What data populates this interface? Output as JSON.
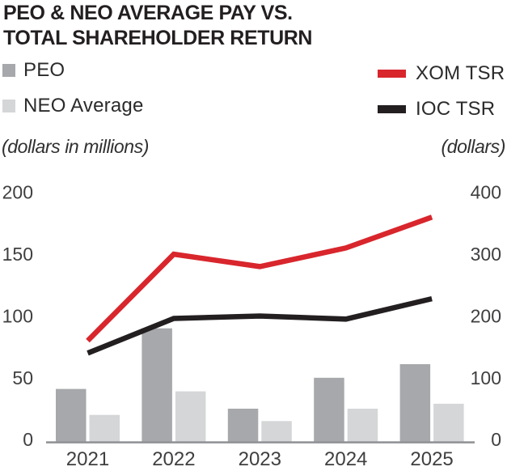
{
  "title": {
    "line1": "PEO & NEO AVERAGE PAY VS.",
    "line2": "TOTAL SHAREHOLDER RETURN"
  },
  "legend": {
    "peo_label": "PEO",
    "neo_label": "NEO Average",
    "xom_label": "XOM TSR",
    "ioc_label": "IOC TSR"
  },
  "axis_captions": {
    "left": "(dollars in millions)",
    "right": "(dollars)"
  },
  "colors": {
    "peo_bar": "#a6a8ab",
    "neo_bar": "#d4d6d7",
    "xom_line": "#d8262c",
    "ioc_line": "#231f20",
    "axis_line": "#919396",
    "tick_text": "#3f3f41",
    "title_text": "#231f20"
  },
  "chart_data": {
    "type": "bar+line",
    "categories": [
      "2021",
      "2022",
      "2023",
      "2024",
      "2025"
    ],
    "series": [
      {
        "name": "PEO",
        "type": "bar",
        "axis": "left",
        "color": "#a6a8ab",
        "values": [
          41,
          90,
          25,
          50,
          61
        ]
      },
      {
        "name": "NEO Average",
        "type": "bar",
        "axis": "left",
        "color": "#d4d6d7",
        "values": [
          20,
          39,
          15,
          25,
          29
        ]
      },
      {
        "name": "XOM TSR",
        "type": "line",
        "axis": "right",
        "color": "#d8262c",
        "values": [
          160,
          300,
          280,
          310,
          360
        ]
      },
      {
        "name": "IOC TSR",
        "type": "line",
        "axis": "right",
        "color": "#231f20",
        "values": [
          140,
          196,
          200,
          195,
          228
        ]
      }
    ],
    "left_axis": {
      "label": "(dollars in millions)",
      "ticks": [
        0,
        50,
        100,
        150,
        200
      ],
      "range": [
        0,
        200
      ]
    },
    "right_axis": {
      "label": "(dollars)",
      "ticks": [
        0,
        100,
        200,
        300,
        400
      ],
      "range": [
        0,
        400
      ]
    },
    "grid": false,
    "legend_position": "top"
  }
}
